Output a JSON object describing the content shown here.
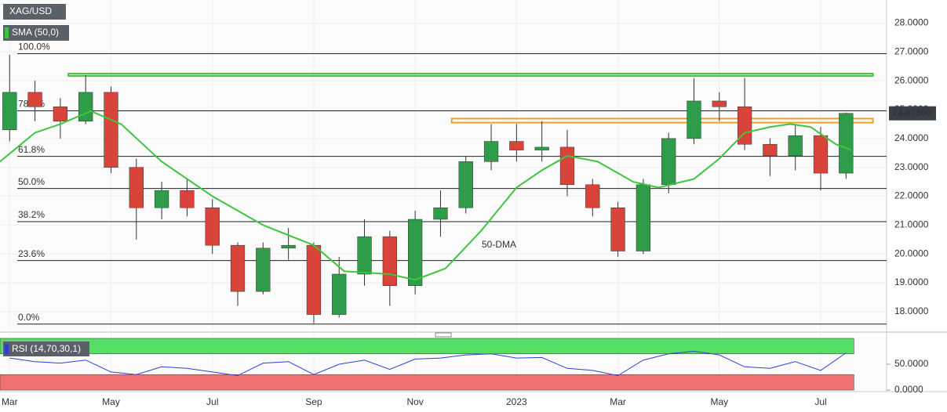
{
  "chart_data": [
    {
      "type": "candlestick",
      "title": "XAG/USD",
      "annotation": "50-DMA",
      "xlim": [
        -0.19,
        17.3
      ],
      "ylim": [
        17.4,
        28.8
      ],
      "xticks": [
        {
          "value": 0,
          "label": "Mar"
        },
        {
          "value": 2,
          "label": "May"
        },
        {
          "value": 4,
          "label": "Jul"
        },
        {
          "value": 6,
          "label": "Sep"
        },
        {
          "value": 8,
          "label": "Nov"
        },
        {
          "value": 10,
          "label": "2023"
        },
        {
          "value": 12,
          "label": "Mar"
        },
        {
          "value": 14,
          "label": "May"
        },
        {
          "value": 16,
          "label": "Jul"
        }
      ],
      "yticks": [
        {
          "value": 18,
          "label": "18.0000"
        },
        {
          "value": 19,
          "label": "19.0000"
        },
        {
          "value": 20,
          "label": "20.0000"
        },
        {
          "value": 21,
          "label": "21.0000"
        },
        {
          "value": 22,
          "label": "22.0000"
        },
        {
          "value": 23,
          "label": "23.0000"
        },
        {
          "value": 24,
          "label": "24.0000"
        },
        {
          "value": 25,
          "label": "25.0000"
        },
        {
          "value": 26,
          "label": "26.0000"
        },
        {
          "value": 27,
          "label": "27.0000"
        },
        {
          "value": 28,
          "label": "28.0000"
        }
      ],
      "grid": true,
      "up_color": "#2e9c48",
      "down_color": "#d9443a",
      "x": [
        0,
        0.5,
        1,
        1.5,
        2,
        2.5,
        3,
        3.5,
        4,
        4.5,
        5,
        5.5,
        6,
        6.5,
        7,
        7.5,
        8,
        8.5,
        9,
        9.5,
        10,
        10.5,
        11,
        11.5,
        12,
        12.5,
        13,
        13.5,
        14,
        14.5,
        15,
        15.5,
        16,
        16.5
      ],
      "open": [
        24.3,
        25.6,
        25.1,
        24.6,
        25.6,
        23.0,
        21.6,
        22.2,
        21.6,
        20.3,
        18.7,
        20.2,
        20.3,
        17.9,
        19.3,
        20.6,
        18.9,
        21.2,
        21.6,
        23.2,
        23.9,
        23.6,
        23.7,
        22.4,
        21.6,
        20.1,
        22.4,
        24.0,
        25.3,
        25.1,
        23.8,
        23.4,
        24.1,
        22.8
      ],
      "high": [
        26.9,
        26.0,
        25.4,
        26.2,
        25.8,
        23.3,
        22.5,
        22.6,
        21.9,
        20.4,
        20.4,
        20.9,
        20.4,
        19.9,
        21.2,
        20.8,
        21.5,
        22.2,
        23.4,
        24.5,
        24.5,
        24.6,
        24.3,
        22.6,
        21.8,
        22.6,
        24.2,
        26.1,
        25.6,
        26.1,
        24.0,
        24.5,
        24.4,
        24.9
      ],
      "low": [
        23.9,
        24.6,
        24.0,
        24.5,
        22.8,
        20.5,
        21.2,
        21.3,
        20.0,
        18.2,
        18.6,
        19.8,
        17.6,
        17.8,
        18.9,
        18.2,
        18.6,
        20.6,
        21.4,
        22.9,
        23.2,
        23.2,
        22.0,
        21.3,
        19.9,
        20.0,
        22.1,
        23.8,
        24.6,
        23.6,
        22.7,
        22.9,
        22.2,
        22.6
      ],
      "close": [
        25.6,
        25.1,
        24.6,
        25.6,
        23.0,
        21.6,
        22.2,
        21.6,
        20.3,
        18.7,
        20.2,
        20.3,
        17.9,
        19.3,
        20.6,
        18.9,
        21.2,
        21.6,
        23.2,
        23.9,
        23.6,
        23.7,
        22.4,
        21.6,
        20.1,
        22.4,
        24.0,
        25.3,
        25.1,
        23.8,
        23.4,
        24.1,
        22.8,
        24.873
      ],
      "series": [
        {
          "name": "SMA (50,0)",
          "color": "#3ec43e",
          "x": [
            -0.19,
            0.5,
            1,
            1.6,
            2.2,
            3,
            4,
            5,
            6,
            6.6,
            7.5,
            8,
            8.6,
            9.3,
            10,
            10.5,
            11,
            11.6,
            12.3,
            12.8,
            13.5,
            14,
            14.5,
            15,
            15.4,
            15.8,
            16.3,
            16.6
          ],
          "values": [
            23.2,
            24.2,
            24.5,
            24.95,
            24.5,
            23.2,
            22.0,
            21.0,
            20.3,
            19.4,
            19.3,
            19.1,
            19.5,
            20.8,
            22.3,
            22.9,
            23.4,
            23.2,
            22.5,
            22.3,
            22.6,
            23.3,
            24.2,
            24.4,
            24.5,
            24.4,
            23.8,
            23.6
          ]
        }
      ],
      "levels": [
        {
          "label": "100.0%",
          "value": 26.94
        },
        {
          "label": "78.6%",
          "value": 24.96
        },
        {
          "label": "61.8%",
          "value": 23.38
        },
        {
          "label": "50.0%",
          "value": 22.27
        },
        {
          "label": "38.2%",
          "value": 21.12
        },
        {
          "label": "23.6%",
          "value": 19.77
        },
        {
          "label": "0.0%",
          "value": 17.57
        }
      ],
      "zones": [
        {
          "color": "#3ec43e",
          "x": [
            1.16,
            17.03
          ],
          "y": [
            26.17,
            26.25
          ]
        },
        {
          "color": "#f0a020",
          "x": [
            8.72,
            17.03
          ],
          "y": [
            24.55,
            24.69
          ]
        }
      ],
      "last_price": {
        "value": 24.873,
        "label": "24.87300"
      }
    },
    {
      "type": "line",
      "title": "RSI (14,70,30,1)",
      "color": "#2f3fd6",
      "xlim": [
        -0.19,
        17.3
      ],
      "ylim": [
        0,
        100
      ],
      "yticks": [
        {
          "value": 0,
          "label": "0.0000"
        },
        {
          "value": 50,
          "label": "50.0000"
        }
      ],
      "bands": [
        {
          "range": [
            70,
            100
          ],
          "color": "#55dd66"
        },
        {
          "range": [
            0,
            30
          ],
          "color": "#f27272"
        }
      ],
      "x": [
        0,
        0.5,
        1,
        1.5,
        2,
        2.5,
        3,
        3.5,
        4,
        4.5,
        5,
        5.5,
        6,
        6.5,
        7,
        7.5,
        8,
        8.5,
        9,
        9.5,
        10,
        10.5,
        11,
        11.5,
        12,
        12.5,
        13,
        13.5,
        14,
        14.5,
        15,
        15.5,
        16,
        16.5
      ],
      "values": [
        62,
        55,
        52,
        58,
        35,
        30,
        45,
        42,
        35,
        28,
        52,
        55,
        30,
        50,
        58,
        40,
        60,
        62,
        68,
        70,
        62,
        63,
        42,
        38,
        28,
        58,
        70,
        75,
        68,
        45,
        42,
        55,
        38,
        72
      ]
    }
  ]
}
